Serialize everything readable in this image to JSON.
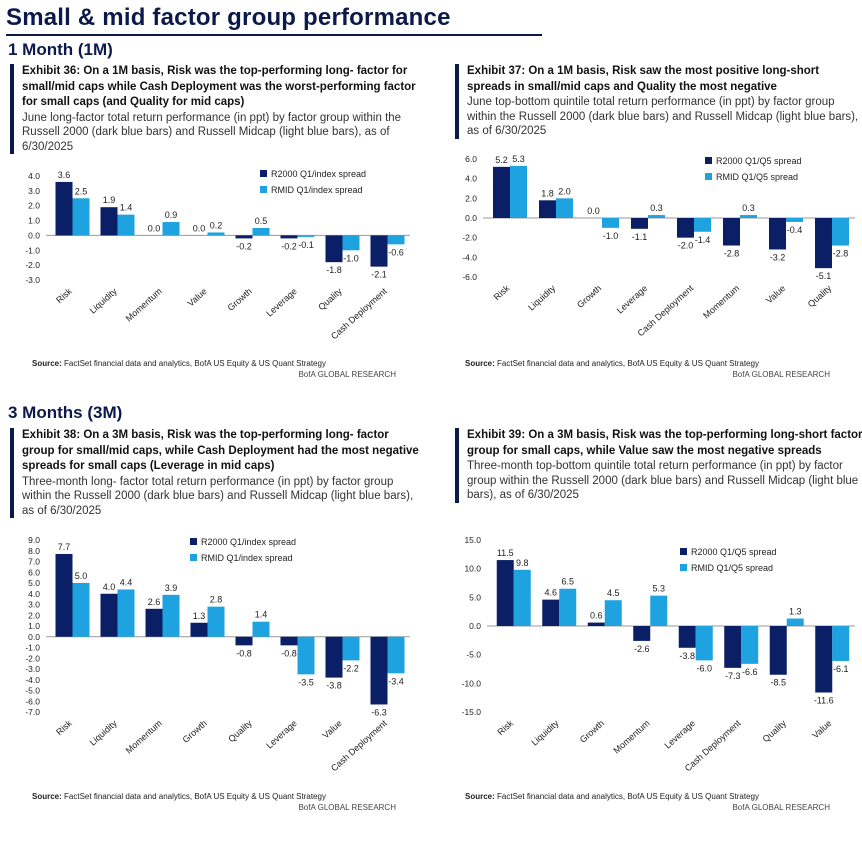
{
  "page": {
    "title": "Small & mid factor group performance",
    "section_1m": "1 Month (1M)",
    "section_3m": "3 Months (3M)"
  },
  "colors": {
    "dark": "#0b1f66",
    "light": "#1ea3e0",
    "axis": "#999999",
    "text": "#222222"
  },
  "source": {
    "label": "Source:",
    "text": "FactSet financial data and analytics, BofA US Equity & US Quant Strategy"
  },
  "brand": "BofA GLOBAL RESEARCH",
  "panels": [
    {
      "title": "Exhibit 36: On a 1M basis, Risk was the top-performing long- factor for small/mid caps while Cash Deployment was the worst-performing factor for small caps (and Quality for mid caps)",
      "subtitle": "June long-factor total return performance (in ppt) by factor group within the Russell 2000 (dark blue bars) and Russell Midcap (light blue bars), as of 6/30/2025"
    },
    {
      "title": "Exhibit 37: On a 1M basis, Risk saw the most positive long-short spreads in small/mid caps and Quality the most negative",
      "subtitle": "June top-bottom quintile total return performance (in ppt) by factor group within the Russell 2000 (dark blue bars) and Russell Midcap (light blue bars), as of 6/30/2025"
    },
    {
      "title": "Exhibit 38: On a 3M basis, Risk was the top-performing long- factor group for small/mid caps, while Cash Deployment had the most negative spreads for small caps (Leverage in mid caps)",
      "subtitle": "Three-month long- factor total return performance (in ppt) by factor group within the Russell 2000 (dark blue bars) and Russell Midcap (light blue bars), as of 6/30/2025"
    },
    {
      "title": "Exhibit 39: On a 3M basis, Risk was the top-performing long-short factor group for small caps, while Value saw the most negative spreads",
      "subtitle": "Three-month top-bottom quintile total return performance (in ppt) by factor group within the Russell 2000 (dark blue bars) and Russell Midcap (light blue bars), as of 6/30/2025"
    }
  ],
  "chart_data": [
    {
      "type": "bar",
      "title": "Exhibit 36",
      "categories": [
        "Risk",
        "Liquidity",
        "Momentum",
        "Value",
        "Growth",
        "Leverage",
        "Quality",
        "Cash Deployment"
      ],
      "series": [
        {
          "name": "R2000 Q1/index spread",
          "values": [
            3.6,
            1.9,
            0.0,
            0.0,
            -0.2,
            -0.2,
            -1.8,
            -2.1
          ]
        },
        {
          "name": "RMID Q1/index spread",
          "values": [
            2.5,
            1.4,
            0.9,
            0.2,
            0.5,
            -0.1,
            -1.0,
            -0.6
          ]
        }
      ],
      "ylim": [
        -3.0,
        4.0
      ],
      "yticks": [
        4.0,
        3.0,
        2.0,
        1.0,
        0.0,
        -1.0,
        -2.0,
        -3.0
      ],
      "legend": "top-right"
    },
    {
      "type": "bar",
      "title": "Exhibit 37",
      "categories": [
        "Risk",
        "Liquidity",
        "Growth",
        "Leverage",
        "Cash Deployment",
        "Momentum",
        "Value",
        "Quality"
      ],
      "series": [
        {
          "name": "R2000 Q1/Q5 spread",
          "values": [
            5.2,
            1.8,
            0.0,
            -1.1,
            -2.0,
            -2.8,
            -3.2,
            -5.1
          ]
        },
        {
          "name": "RMID Q1/Q5 spread",
          "values": [
            5.3,
            2.0,
            -1.0,
            0.3,
            -1.4,
            0.3,
            -0.4,
            -2.8
          ]
        }
      ],
      "ylim": [
        -6.0,
        6.0
      ],
      "yticks": [
        6.0,
        4.0,
        2.0,
        0.0,
        -2.0,
        -4.0,
        -6.0
      ],
      "legend": "top-right"
    },
    {
      "type": "bar",
      "title": "Exhibit 38",
      "categories": [
        "Risk",
        "Liquidity",
        "Momentum",
        "Growth",
        "Quality",
        "Leverage",
        "Value",
        "Cash Deployment"
      ],
      "series": [
        {
          "name": "R2000 Q1/index spread",
          "values": [
            7.7,
            4.0,
            2.6,
            1.3,
            -0.8,
            -0.8,
            -3.8,
            -6.3
          ]
        },
        {
          "name": "RMID Q1/index spread",
          "values": [
            5.0,
            4.4,
            3.9,
            2.8,
            1.4,
            -3.5,
            -2.2,
            -3.4
          ]
        }
      ],
      "ylim": [
        -7.0,
        9.0
      ],
      "yticks": [
        9.0,
        8.0,
        7.0,
        6.0,
        5.0,
        4.0,
        3.0,
        2.0,
        1.0,
        0.0,
        -1.0,
        -2.0,
        -3.0,
        -4.0,
        -5.0,
        -6.0,
        -7.0
      ],
      "legend": "top-right"
    },
    {
      "type": "bar",
      "title": "Exhibit 39",
      "categories": [
        "Risk",
        "Liquidity",
        "Growth",
        "Momentum",
        "Leverage",
        "Cash Deployment",
        "Quality",
        "Value"
      ],
      "series": [
        {
          "name": "R2000 Q1/Q5 spread",
          "values": [
            11.5,
            4.6,
            0.6,
            -2.6,
            -3.8,
            -7.3,
            -8.5,
            -11.6
          ]
        },
        {
          "name": "RMID Q1/Q5 spread",
          "values": [
            9.8,
            6.5,
            4.5,
            5.3,
            -6.0,
            -6.6,
            1.3,
            -6.1
          ]
        }
      ],
      "ylim": [
        -15.0,
        15.0
      ],
      "yticks": [
        15.0,
        10.0,
        5.0,
        0.0,
        -5.0,
        -10.0,
        -15.0
      ],
      "legend": "top-right"
    }
  ]
}
